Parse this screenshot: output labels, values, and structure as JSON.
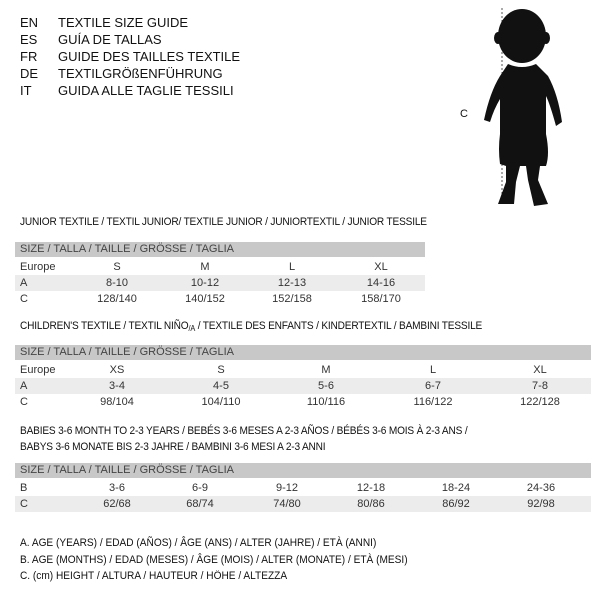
{
  "languages": [
    {
      "code": "EN",
      "title": "TEXTILE SIZE GUIDE"
    },
    {
      "code": "ES",
      "title": "GUÍA DE TALLAS"
    },
    {
      "code": "FR",
      "title": "GUIDE DES TAILLES TEXTILE"
    },
    {
      "code": "DE",
      "title": "TEXTILGRÖßENFÜHRUNG"
    },
    {
      "code": "IT",
      "title": "GUIDA ALLE TAGLIE TESSILI"
    }
  ],
  "figure": {
    "height_label": "C"
  },
  "size_header": "SIZE / TALLA / TAILLE / GRÖSSE / TAGLIA",
  "junior": {
    "title": "JUNIOR TEXTILE / TEXTIL JUNIOR/ TEXTILE JUNIOR / JUNIORTEXTIL / JUNIOR TESSILE",
    "rows": [
      {
        "label": "Europe",
        "values": [
          "S",
          "M",
          "L",
          "XL"
        ]
      },
      {
        "label": "A",
        "values": [
          "8-10",
          "10-12",
          "12-13",
          "14-16"
        ]
      },
      {
        "label": "C",
        "values": [
          "128/140",
          "140/152",
          "152/158",
          "158/170"
        ]
      }
    ]
  },
  "children": {
    "title": "CHILDREN'S TEXTILE / TEXTIL NIÑO/A / TEXTILE DES ENFANTS / KINDERTEXTIL / BAMBINI TESSILE",
    "rows": [
      {
        "label": "Europe",
        "values": [
          "XS",
          "S",
          "M",
          "L",
          "XL"
        ]
      },
      {
        "label": "A",
        "values": [
          "3-4",
          "4-5",
          "5-6",
          "6-7",
          "7-8"
        ]
      },
      {
        "label": "C",
        "values": [
          "98/104",
          "104/110",
          "110/116",
          "116/122",
          "122/128"
        ]
      }
    ]
  },
  "babies": {
    "title_line1": "BABIES 3-6 MONTH TO 2-3 YEARS / BEBÉS 3-6 MESES A 2-3 AÑOS / BÉBÉS 3-6 MOIS À 2-3 ANS /",
    "title_line2": "BABYS 3-6 MONATE BIS 2-3 JAHRE / BAMBINI 3-6 MESI A 2-3 ANNI",
    "rows": [
      {
        "label": "B",
        "values": [
          "3-6",
          "6-9",
          "9-12",
          "12-18",
          "18-24",
          "24-36"
        ]
      },
      {
        "label": "C",
        "values": [
          "62/68",
          "68/74",
          "74/80",
          "80/86",
          "86/92",
          "92/98"
        ]
      }
    ]
  },
  "legend": [
    "A. AGE (YEARS) / EDAD (AÑOS) / ÂGE (ANS) / ALTER (JAHRE) / ETÀ (ANNI)",
    "B. AGE (MONTHS) / EDAD (MESES) / ÂGE (MOIS) / ALTER (MONATE) / ETÀ (MESI)",
    "C. (cm) HEIGHT / ALTURA / HAUTEUR / HÖHE / ALTEZZA"
  ]
}
